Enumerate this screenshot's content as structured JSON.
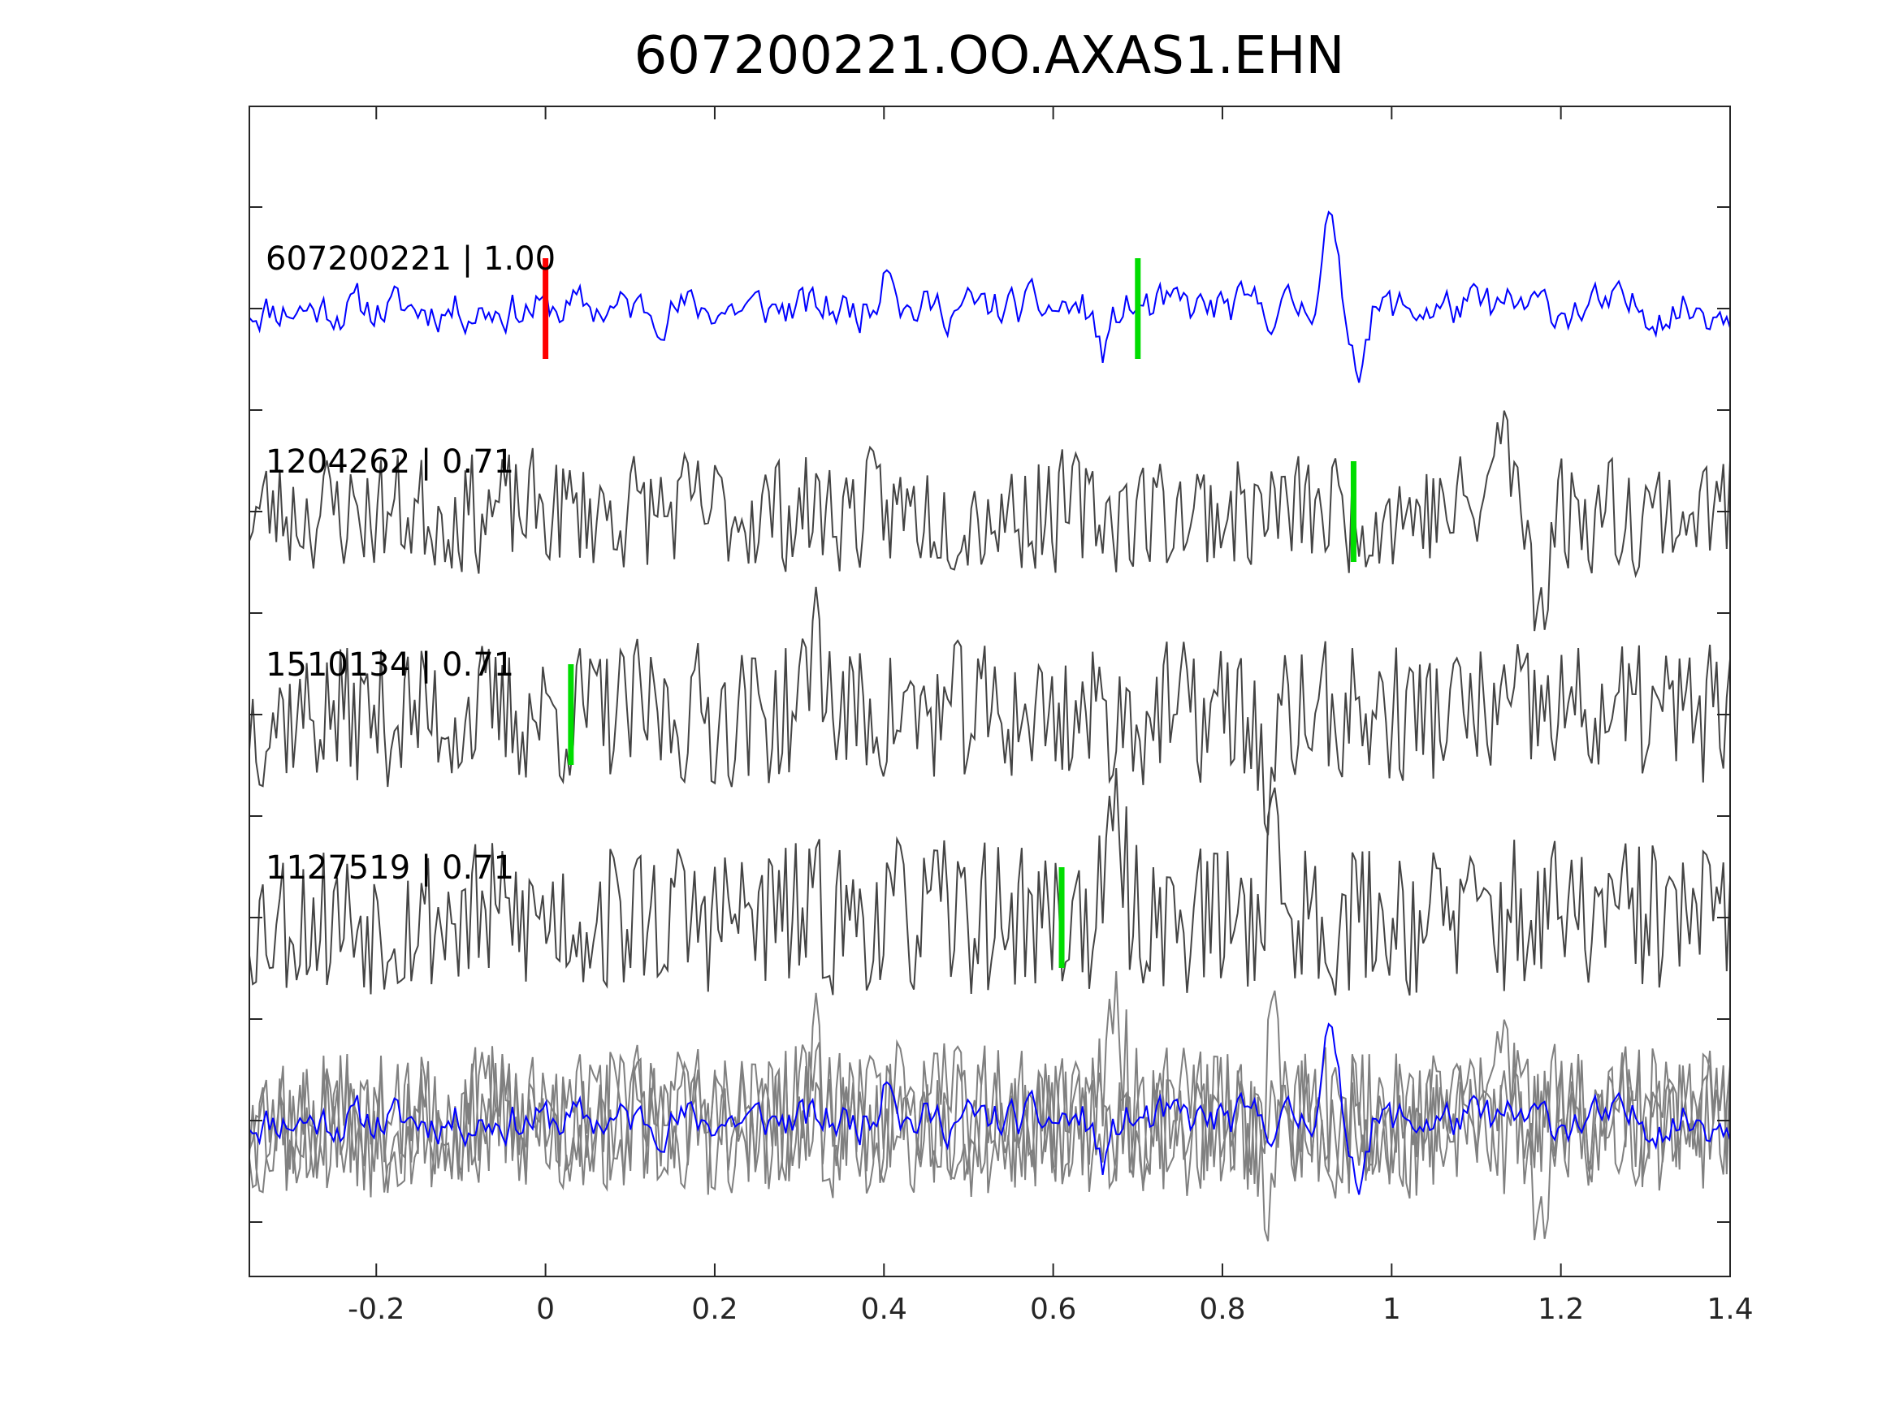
{
  "chart_data": {
    "type": "line",
    "title": "607200221.OO.AXAS1.EHN",
    "xlabel": "",
    "ylabel": "",
    "xlim": [
      -0.35,
      1.4
    ],
    "x_ticks": [
      -0.2,
      0,
      0.2,
      0.4,
      0.6,
      0.8,
      1,
      1.2,
      1.4
    ],
    "x_tick_labels": [
      "-0.2",
      "0",
      "0.2",
      "0.4",
      "0.6",
      "0.8",
      "1",
      "1.2",
      "1.4"
    ],
    "y_tick_count": 12,
    "grid": false,
    "colors": {
      "template": "#0000ff",
      "match": "#444444",
      "overlay": "#808080",
      "reference_pick": "#ff0000",
      "match_pick": "#00dd00",
      "axes": "#262626"
    },
    "series": [
      {
        "label": "607200221 | 1.00",
        "color": "#0000ff",
        "pick_time": 0.0,
        "pick_color": "#ff0000",
        "second_pick_time": 0.7,
        "second_pick_color": "#00dd00",
        "peaks": [
          {
            "t": 0.405,
            "a": 1.3
          },
          {
            "t": 0.66,
            "a": -1.0
          },
          {
            "t": 0.925,
            "a": 2.0
          },
          {
            "t": 0.96,
            "a": -1.1
          }
        ]
      },
      {
        "label": "1204262 | 0.71",
        "color": "#444444",
        "pick_time": 0.955,
        "pick_color": "#00dd00",
        "peaks": [
          {
            "t": 1.13,
            "a": 2.0
          },
          {
            "t": 1.175,
            "a": -2.0
          }
        ]
      },
      {
        "label": "1510134 | 0.71",
        "color": "#444444",
        "pick_time": 0.03,
        "pick_color": "#00dd00",
        "peaks": [
          {
            "t": 0.32,
            "a": 2.0
          },
          {
            "t": 0.855,
            "a": -2.0
          }
        ]
      },
      {
        "label": "1127519 | 0.71",
        "color": "#444444",
        "pick_time": 0.61,
        "pick_color": "#00dd00",
        "peaks": [
          {
            "t": 0.675,
            "a": 2.0
          },
          {
            "t": 0.86,
            "a": 1.8
          }
        ]
      }
    ],
    "overlay": {
      "description": "all traces stacked at bottom",
      "series_colors": [
        "#808080",
        "#808080",
        "#808080",
        "#0000ff"
      ]
    }
  }
}
